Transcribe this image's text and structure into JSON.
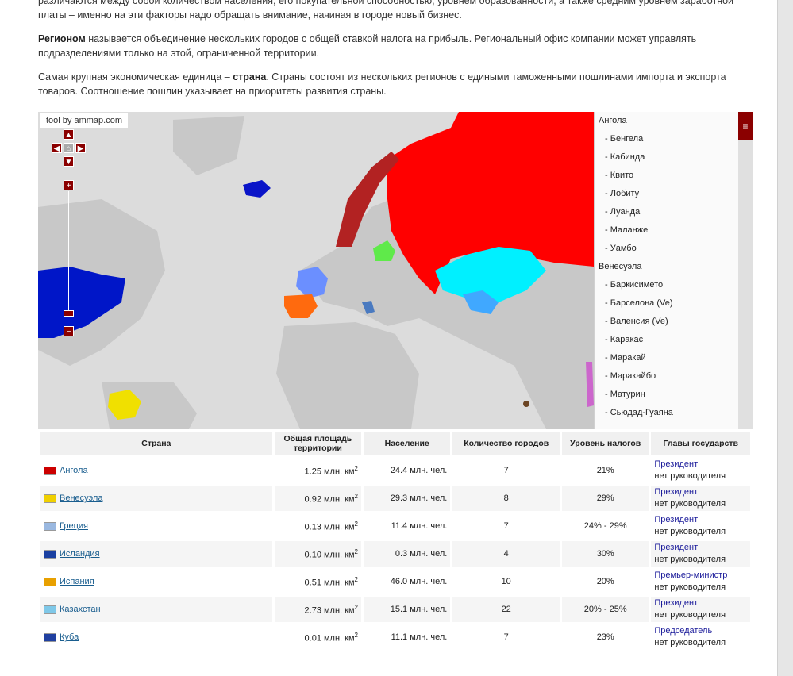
{
  "paragraphs": {
    "p0_line1": "различаются между собой количеством населения, его покупательной способностью, уровнем образованности, а также средним уровнем заработной",
    "p0_line2": "платы – именно на эти факторы надо обращать внимание, начиная в городе новый бизнес.",
    "p1_bold": "Регионом",
    "p1_rest": " называется объединение нескольких городов с общей ставкой налога на прибыль. Региональный офис компании может управлять подразделениями только на этой, ограниченной территории.",
    "p2_start": "Самая крупная экономическая единица – ",
    "p2_bold": "страна",
    "p2_rest": ". Страны состоят из нескольких регионов с едиными таможенными пошлинами импорта и экспорта товаров. Соотношение пошлин указывает на приоритеты развития страны."
  },
  "map": {
    "credit": "tool by ammap.com",
    "colors": {
      "russia": "#ff0000",
      "kazakhstan": "#00f0ff",
      "belarus": "#5fea4a",
      "spain": "#ff6a0e",
      "france": "#6b8fff",
      "usa": "#0016c8",
      "iceland": "#0a14c8",
      "venezuela": "#f0e000",
      "norway": "#b22222",
      "legend_bg": "#ff8080"
    },
    "legend": [
      {
        "group": "Ангола",
        "items": [
          "Бенгела",
          "Кабинда",
          "Квито",
          "Лобиту",
          "Луанда",
          "Маланже",
          "Уамбо"
        ]
      },
      {
        "group": "Венесуэла",
        "items": [
          "Баркисимето",
          "Барселона (Ve)",
          "Валенсия (Ve)",
          "Каракас",
          "Маракай",
          "Маракайбо",
          "Матурин",
          "Сьюдад-Гуаяна"
        ]
      }
    ]
  },
  "table": {
    "headers": [
      "Страна",
      "Общая площадь территории",
      "Население",
      "Количество городов",
      "Уровень налогов",
      "Главы государств"
    ],
    "rows": [
      {
        "country": "Ангола",
        "area": "1.25 млн. км",
        "pop": "24.4 млн. чел.",
        "cities": "7",
        "tax": "21%",
        "role": "Президент",
        "leader": "нет руководителя",
        "flag": "#cc0000"
      },
      {
        "country": "Венесуэла",
        "area": "0.92 млн. км",
        "pop": "29.3 млн. чел.",
        "cities": "8",
        "tax": "29%",
        "role": "Президент",
        "leader": "нет руководителя",
        "flag": "#f0d000"
      },
      {
        "country": "Греция",
        "area": "0.13 млн. км",
        "pop": "11.4 млн. чел.",
        "cities": "7",
        "tax": "24% - 29%",
        "role": "Президент",
        "leader": "нет руководителя",
        "flag": "#9ab8e0"
      },
      {
        "country": "Исландия",
        "area": "0.10 млн. км",
        "pop": "0.3 млн. чел.",
        "cities": "4",
        "tax": "30%",
        "role": "Президент",
        "leader": "нет руководителя",
        "flag": "#1a3fa0"
      },
      {
        "country": "Испания",
        "area": "0.51 млн. км",
        "pop": "46.0 млн. чел.",
        "cities": "10",
        "tax": "20%",
        "role": "Премьер-министр",
        "leader": "нет руководителя",
        "flag": "#e8a000"
      },
      {
        "country": "Казахстан",
        "area": "2.73 млн. км",
        "pop": "15.1 млн. чел.",
        "cities": "22",
        "tax": "20% - 25%",
        "role": "Президент",
        "leader": "нет руководителя",
        "flag": "#7fc8e8"
      },
      {
        "country": "Куба",
        "area": "0.01 млн. км",
        "pop": "11.1 млн. чел.",
        "cities": "7",
        "tax": "23%",
        "role": "Председатель",
        "leader": "нет руководителя",
        "flag": "#2040a0"
      }
    ],
    "area_sup": "2"
  }
}
